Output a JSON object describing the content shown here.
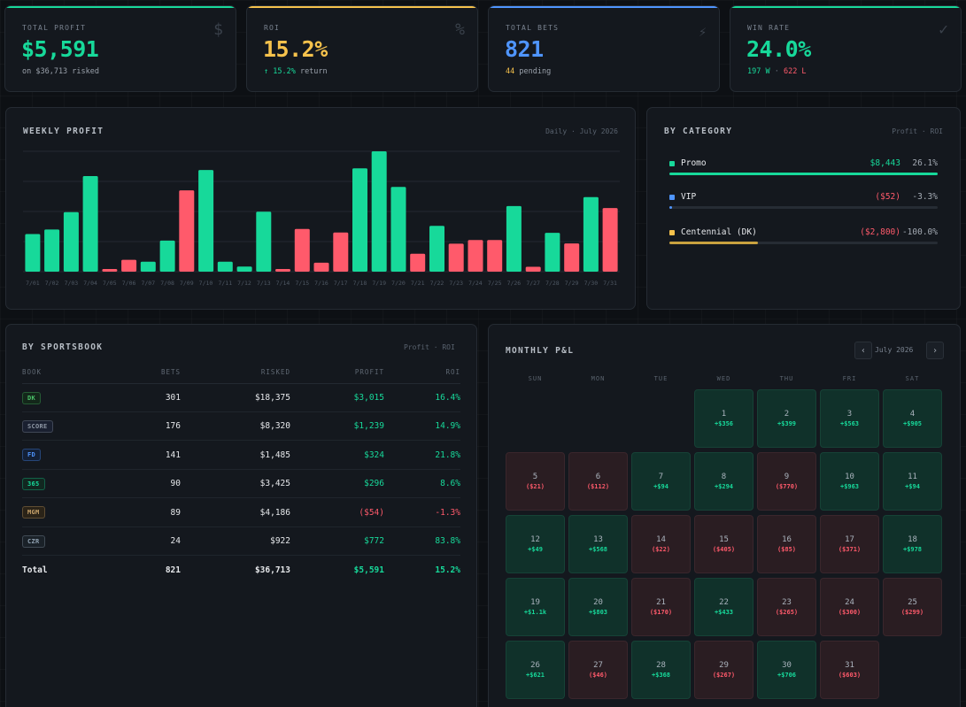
{
  "stats": [
    {
      "label": "TOTAL PROFIT",
      "value": "$5,591",
      "sub": "on $36,713 risked",
      "icon": "dollar-icon",
      "glyph": "$",
      "accent": "#17d99a",
      "color": "green"
    },
    {
      "label": "ROI",
      "value": "15.2%",
      "sub_highlight": "↑ 15.2%",
      "sub": " return",
      "icon": "percent-icon",
      "glyph": "%",
      "accent": "#f6c24c",
      "color": "yellow"
    },
    {
      "label": "TOTAL BETS",
      "value": "821",
      "sub_highlight": "44",
      "sub": " pending",
      "icon": "bolt-icon",
      "glyph": "⚡",
      "accent": "#4f95ff",
      "color": "blue"
    },
    {
      "label": "WIN RATE",
      "value": "24.0%",
      "sub_win": "197 W",
      "sub_sep": " · ",
      "sub_loss": "622 L",
      "icon": "check-icon",
      "glyph": "✓",
      "accent": "#17d99a",
      "color": "green"
    }
  ],
  "weekly": {
    "title": "WEEKLY PROFIT",
    "subtitle": "Daily · July 2026"
  },
  "chart_data": {
    "type": "bar",
    "categories": [
      "7/01",
      "7/02",
      "7/03",
      "7/04",
      "7/05",
      "7/06",
      "7/07",
      "7/08",
      "7/09",
      "7/10",
      "7/11",
      "7/12",
      "7/13",
      "7/14",
      "7/15",
      "7/16",
      "7/17",
      "7/18",
      "7/19",
      "7/20",
      "7/21",
      "7/22",
      "7/23",
      "7/24",
      "7/25",
      "7/26",
      "7/27",
      "7/28",
      "7/29",
      "7/30",
      "7/31"
    ],
    "values": [
      356,
      399,
      563,
      905,
      -21,
      -112,
      94,
      294,
      -770,
      963,
      94,
      49,
      568,
      -22,
      -405,
      -85,
      -371,
      978,
      1140,
      803,
      -170,
      433,
      -265,
      -300,
      -299,
      621,
      -46,
      368,
      -267,
      706,
      -603
    ],
    "colors": {
      "positive": "#17d99a",
      "negative": "#ff5a6b"
    }
  },
  "category": {
    "title": "BY CATEGORY",
    "subtitle": "Profit · ROI",
    "items": [
      {
        "name": "Promo",
        "value": "$8,443",
        "roi": "26.1%",
        "color": "#17d99a",
        "fill": 1.0,
        "tone": "green"
      },
      {
        "name": "VIP",
        "value": "($52)",
        "roi": "-3.3%",
        "color": "#4f95ff",
        "fill": 0.006,
        "tone": "red"
      },
      {
        "name": "Centennial (DK)",
        "value": "($2,800)",
        "roi": "-100.0%",
        "color": "#f6c24c",
        "fill": 0.33,
        "tone": "red"
      }
    ]
  },
  "sportsbook": {
    "title": "BY SPORTSBOOK",
    "subtitle": "Profit · ROI",
    "columns": [
      "BOOK",
      "BETS",
      "RISKED",
      "PROFIT",
      "ROI"
    ],
    "rows": [
      {
        "book": "DK",
        "bets": "301",
        "risked": "$18,375",
        "profit": "$3,015",
        "roi": "16.4%",
        "tone": "green",
        "badge_color": "#4cc46a",
        "badge_bg": "#13271a"
      },
      {
        "book": "SCORE",
        "bets": "176",
        "risked": "$8,320",
        "profit": "$1,239",
        "roi": "14.9%",
        "tone": "green",
        "badge_color": "#8d96a3",
        "badge_bg": "#1a2030"
      },
      {
        "book": "FD",
        "bets": "141",
        "risked": "$1,485",
        "profit": "$324",
        "roi": "21.8%",
        "tone": "green",
        "badge_color": "#4f95ff",
        "badge_bg": "#131f35"
      },
      {
        "book": "365",
        "bets": "90",
        "risked": "$3,425",
        "profit": "$296",
        "roi": "8.6%",
        "tone": "green",
        "badge_color": "#17d99a",
        "badge_bg": "#112720"
      },
      {
        "book": "MGM",
        "bets": "89",
        "risked": "$4,186",
        "profit": "($54)",
        "roi": "-1.3%",
        "tone": "red",
        "badge_color": "#c9a36a",
        "badge_bg": "#2a2318"
      },
      {
        "book": "CZR",
        "bets": "24",
        "risked": "$922",
        "profit": "$772",
        "roi": "83.8%",
        "tone": "green",
        "badge_color": "#8fa0b0",
        "badge_bg": "#1a2128"
      }
    ],
    "total": {
      "book": "Total",
      "bets": "821",
      "risked": "$36,713",
      "profit": "$5,591",
      "roi": "15.2%"
    }
  },
  "calendar": {
    "title": "MONTHLY P&L",
    "month": "July 2026",
    "prev": "‹",
    "next": "›",
    "dow": [
      "SUN",
      "MON",
      "TUE",
      "WED",
      "THU",
      "FRI",
      "SAT"
    ],
    "start_weekday": 3,
    "days": [
      {
        "d": "1",
        "v": "+$356",
        "pos": true
      },
      {
        "d": "2",
        "v": "+$399",
        "pos": true
      },
      {
        "d": "3",
        "v": "+$563",
        "pos": true
      },
      {
        "d": "4",
        "v": "+$905",
        "pos": true
      },
      {
        "d": "5",
        "v": "($21)",
        "pos": false
      },
      {
        "d": "6",
        "v": "($112)",
        "pos": false
      },
      {
        "d": "7",
        "v": "+$94",
        "pos": true
      },
      {
        "d": "8",
        "v": "+$294",
        "pos": true
      },
      {
        "d": "9",
        "v": "($770)",
        "pos": false
      },
      {
        "d": "10",
        "v": "+$963",
        "pos": true
      },
      {
        "d": "11",
        "v": "+$94",
        "pos": true
      },
      {
        "d": "12",
        "v": "+$49",
        "pos": true
      },
      {
        "d": "13",
        "v": "+$568",
        "pos": true
      },
      {
        "d": "14",
        "v": "($22)",
        "pos": false
      },
      {
        "d": "15",
        "v": "($405)",
        "pos": false
      },
      {
        "d": "16",
        "v": "($85)",
        "pos": false
      },
      {
        "d": "17",
        "v": "($371)",
        "pos": false
      },
      {
        "d": "18",
        "v": "+$978",
        "pos": true
      },
      {
        "d": "19",
        "v": "+$1.1k",
        "pos": true
      },
      {
        "d": "20",
        "v": "+$803",
        "pos": true
      },
      {
        "d": "21",
        "v": "($170)",
        "pos": false
      },
      {
        "d": "22",
        "v": "+$433",
        "pos": true
      },
      {
        "d": "23",
        "v": "($265)",
        "pos": false
      },
      {
        "d": "24",
        "v": "($300)",
        "pos": false
      },
      {
        "d": "25",
        "v": "($299)",
        "pos": false
      },
      {
        "d": "26",
        "v": "+$621",
        "pos": true
      },
      {
        "d": "27",
        "v": "($46)",
        "pos": false
      },
      {
        "d": "28",
        "v": "+$368",
        "pos": true
      },
      {
        "d": "29",
        "v": "($267)",
        "pos": false
      },
      {
        "d": "30",
        "v": "+$706",
        "pos": true
      },
      {
        "d": "31",
        "v": "($603)",
        "pos": false
      }
    ]
  }
}
